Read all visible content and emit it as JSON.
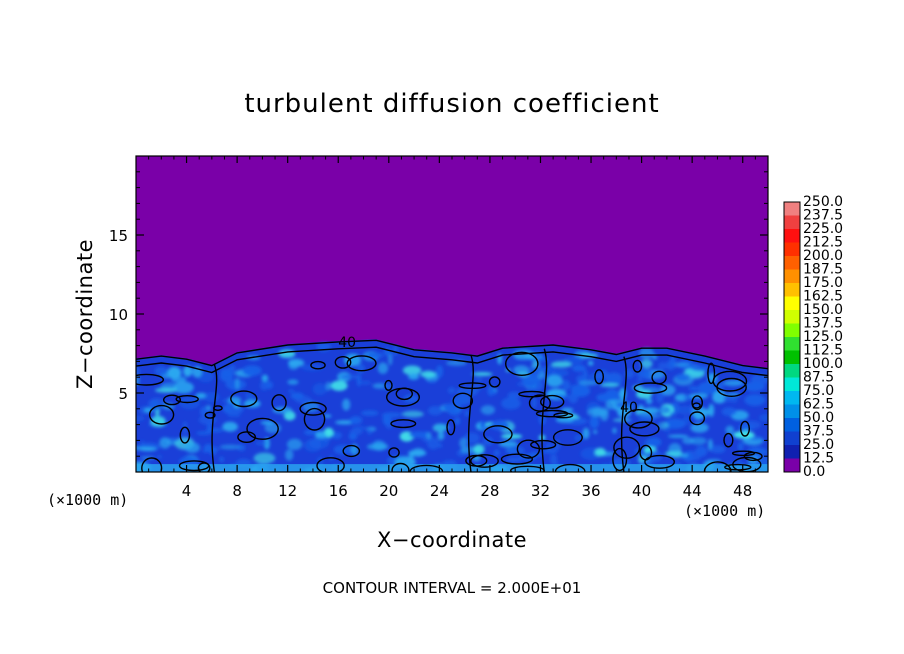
{
  "chart_data": {
    "type": "heatmap",
    "title": "turbulent diffusion coefficient",
    "xlabel": "X−coordinate",
    "ylabel": "Z−coordinate",
    "x_unit_left": "(×1000 m)",
    "x_unit_right": "(×1000 m)",
    "xlim": [
      0,
      50
    ],
    "ylim": [
      0,
      20
    ],
    "x_ticks": [
      4,
      8,
      12,
      16,
      20,
      24,
      28,
      32,
      36,
      40,
      44,
      48
    ],
    "x_tick_labels": [
      "4",
      "8",
      "12",
      "16",
      "20",
      "24",
      "28",
      "32",
      "36",
      "40",
      "44",
      "48"
    ],
    "y_ticks": [
      5,
      10,
      15
    ],
    "y_tick_labels": [
      "5",
      "10",
      "15"
    ],
    "contour_labels": [
      {
        "text": "40",
        "x": 16.0,
        "z": 7.9
      },
      {
        "text": "40",
        "x": 38.3,
        "z": 3.8
      }
    ],
    "boundary_layer_top": [
      [
        0,
        7.2
      ],
      [
        2,
        7.4
      ],
      [
        4,
        7.2
      ],
      [
        6,
        6.8
      ],
      [
        8,
        7.6
      ],
      [
        12,
        8.1
      ],
      [
        16,
        8.3
      ],
      [
        19,
        8.4
      ],
      [
        22,
        7.8
      ],
      [
        25,
        7.6
      ],
      [
        27,
        7.4
      ],
      [
        29,
        7.9
      ],
      [
        33,
        8.1
      ],
      [
        36,
        7.8
      ],
      [
        38,
        7.5
      ],
      [
        40,
        7.9
      ],
      [
        42,
        7.9
      ],
      [
        45,
        7.4
      ],
      [
        48,
        6.8
      ],
      [
        50,
        6.6
      ]
    ],
    "colorbar": {
      "min": 0.0,
      "max": 250.0,
      "step": 12.5,
      "labels": [
        "250.0",
        "237.5",
        "225.0",
        "212.5",
        "200.0",
        "187.5",
        "175.0",
        "162.5",
        "150.0",
        "137.5",
        "125.0",
        "112.5",
        "100.0",
        "87.5",
        "75.0",
        "62.5",
        "50.0",
        "37.5",
        "25.0",
        "12.5",
        "0.0"
      ],
      "colors": [
        "#f08080",
        "#f04040",
        "#ff1010",
        "#ff3000",
        "#ff6000",
        "#ff9000",
        "#ffc000",
        "#ffff00",
        "#d0ff00",
        "#80ff00",
        "#30e030",
        "#00c000",
        "#00d880",
        "#00e8d8",
        "#00b8f0",
        "#0090e8",
        "#0060e0",
        "#1040d0",
        "#1020b0",
        "#2010a0",
        "#7a00a8"
      ]
    },
    "footer": "CONTOUR INTERVAL = 2.000E+01"
  },
  "colors": {
    "background": "#7a00a8",
    "low_layer": "#1a3fd8",
    "mid_layer": "#1860e8",
    "high_layer": "#2aa8f0",
    "peak": "#40e0e8"
  }
}
